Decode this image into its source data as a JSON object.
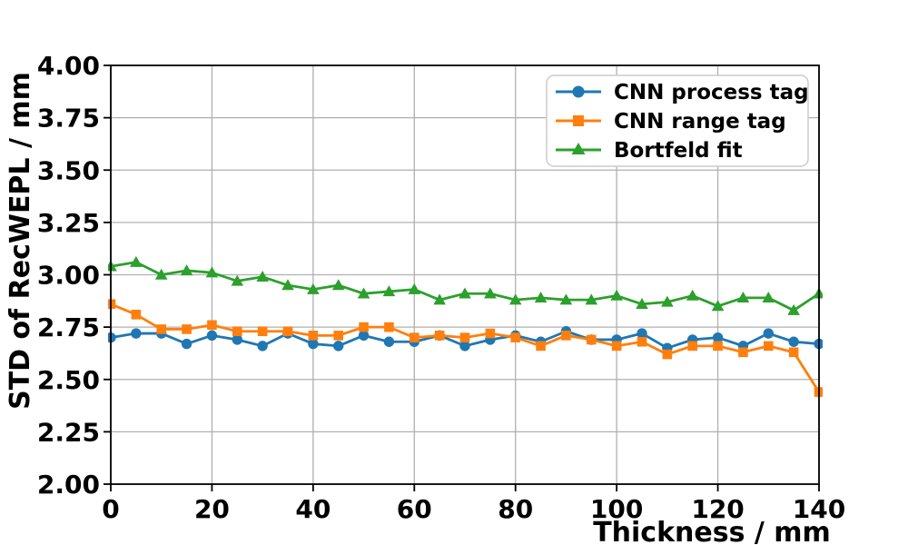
{
  "figure": {
    "background_color": "#ffffff",
    "grid_color": "#b0b0b0",
    "spine_color": "#000000",
    "legend_border_color": "#cccccc",
    "legend_background": "#ffffff"
  },
  "chart_data": {
    "type": "line",
    "title": "",
    "xlabel": "Thickness / mm",
    "ylabel": "STD of RecWEPL / mm",
    "xlim": [
      0,
      140
    ],
    "ylim": [
      2.0,
      4.0
    ],
    "xticks": [
      0,
      20,
      40,
      60,
      80,
      100,
      120,
      140
    ],
    "xtick_labels": [
      "0",
      "20",
      "40",
      "60",
      "80",
      "100",
      "120",
      "140"
    ],
    "ytick_labels": [
      "2.00",
      "2.25",
      "2.50",
      "2.75",
      "3.00",
      "3.25",
      "3.50",
      "3.75",
      "4.00"
    ],
    "grid": true,
    "legend_position": "upper right",
    "x": [
      0,
      5,
      10,
      15,
      20,
      25,
      30,
      35,
      40,
      45,
      50,
      55,
      60,
      65,
      70,
      75,
      80,
      85,
      90,
      95,
      100,
      105,
      110,
      115,
      120,
      125,
      130,
      135,
      140
    ],
    "series": [
      {
        "name": "CNN process tag",
        "color": "#1f77b4",
        "marker": "circle",
        "values": [
          2.7,
          2.72,
          2.72,
          2.67,
          2.71,
          2.69,
          2.66,
          2.72,
          2.67,
          2.66,
          2.71,
          2.68,
          2.68,
          2.71,
          2.66,
          2.69,
          2.71,
          2.68,
          2.73,
          2.69,
          2.69,
          2.72,
          2.65,
          2.69,
          2.7,
          2.66,
          2.72,
          2.68,
          2.67
        ]
      },
      {
        "name": "CNN range tag",
        "color": "#ff7f0e",
        "marker": "square",
        "values": [
          2.86,
          2.81,
          2.74,
          2.74,
          2.76,
          2.73,
          2.73,
          2.73,
          2.71,
          2.71,
          2.75,
          2.75,
          2.7,
          2.71,
          2.7,
          2.72,
          2.7,
          2.66,
          2.71,
          2.69,
          2.66,
          2.68,
          2.62,
          2.66,
          2.66,
          2.63,
          2.66,
          2.63,
          2.44
        ]
      },
      {
        "name": "Bortfeld fit",
        "color": "#2ca02c",
        "marker": "triangle",
        "values": [
          3.04,
          3.06,
          3.0,
          3.02,
          3.01,
          2.97,
          2.99,
          2.95,
          2.93,
          2.95,
          2.91,
          2.92,
          2.93,
          2.88,
          2.91,
          2.91,
          2.88,
          2.89,
          2.88,
          2.88,
          2.9,
          2.86,
          2.87,
          2.9,
          2.85,
          2.89,
          2.89,
          2.83,
          2.91
        ]
      }
    ]
  }
}
